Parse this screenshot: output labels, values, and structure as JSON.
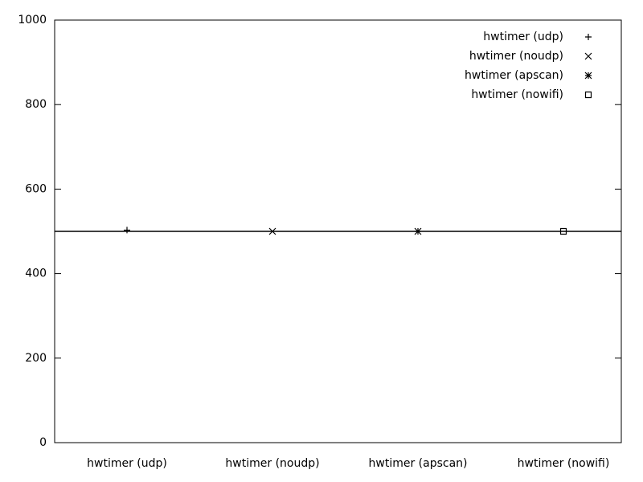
{
  "chart_data": {
    "type": "scatter",
    "categories": [
      "hwtimer (udp)",
      "hwtimer (noudp)",
      "hwtimer (apscan)",
      "hwtimer (nowifi)"
    ],
    "series": [
      {
        "name": "hwtimer (udp)",
        "marker": "plus",
        "color": "#000000",
        "values": [
          503,
          null,
          null,
          null
        ]
      },
      {
        "name": "hwtimer (noudp)",
        "marker": "cross",
        "color": "#000000",
        "values": [
          null,
          500,
          null,
          null
        ]
      },
      {
        "name": "hwtimer (apscan)",
        "marker": "asterisk",
        "color": "#000000",
        "values": [
          null,
          null,
          500,
          null
        ]
      },
      {
        "name": "hwtimer (nowifi)",
        "marker": "square",
        "color": "#000000",
        "values": [
          null,
          null,
          null,
          500
        ]
      }
    ],
    "reference_line": 500,
    "ylim": [
      0,
      1000
    ],
    "yticks": [
      0,
      200,
      400,
      600,
      800,
      1000
    ],
    "legend": "top-right"
  }
}
